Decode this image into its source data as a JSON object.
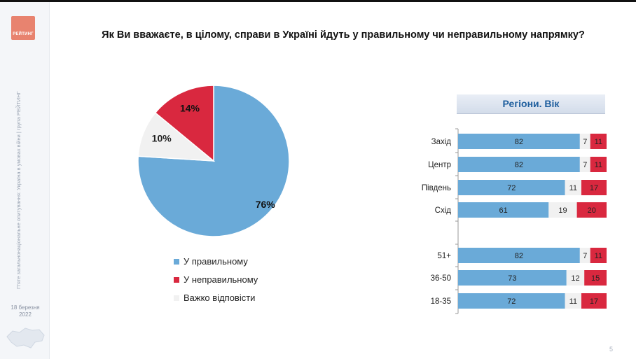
{
  "brand": {
    "logo_text": "РЕЙТИНГ"
  },
  "sidebar": {
    "caption": "П'яте загальнонаціональне опитування: Україна в умовах війни | група РЕЙТИНГ",
    "date_line1": "18 березня",
    "date_line2": "2022"
  },
  "page": {
    "number": "5"
  },
  "colors": {
    "correct": "#6aaad8",
    "incorrect": "#d9283f",
    "hard": "#f1f1f1"
  },
  "chart_data": [
    {
      "type": "pie",
      "title": "Як Ви вважаєте, в цілому, справи в Україні йдуть у правильному чи неправильному напрямку?",
      "slices": [
        {
          "label": "У правильному",
          "value": 76,
          "display": "76%"
        },
        {
          "label": "Важко відповісти",
          "value": 10,
          "display": "10%"
        },
        {
          "label": "У неправильному",
          "value": 14,
          "display": "14%"
        }
      ],
      "legend": [
        "У правильному",
        "У неправильному",
        "Важко відповісти"
      ],
      "legend_placement": "bottom"
    },
    {
      "type": "bar",
      "orientation": "horizontal",
      "stacked": true,
      "title": "Регіони. Вік",
      "categories": [
        "Захід",
        "Центр",
        "Південь",
        "Схід",
        "51+",
        "36-50",
        "18-35"
      ],
      "groups": [
        [
          "Захід",
          "Центр",
          "Південь",
          "Схід"
        ],
        [
          "51+",
          "36-50",
          "18-35"
        ]
      ],
      "series": [
        {
          "name": "У правильному",
          "values": [
            82,
            82,
            72,
            61,
            82,
            73,
            72
          ]
        },
        {
          "name": "Важко відповісти",
          "values": [
            7,
            7,
            11,
            19,
            7,
            12,
            11
          ]
        },
        {
          "name": "У неправильному",
          "values": [
            11,
            11,
            17,
            20,
            11,
            15,
            17
          ]
        }
      ],
      "xlim": [
        0,
        100
      ]
    }
  ]
}
